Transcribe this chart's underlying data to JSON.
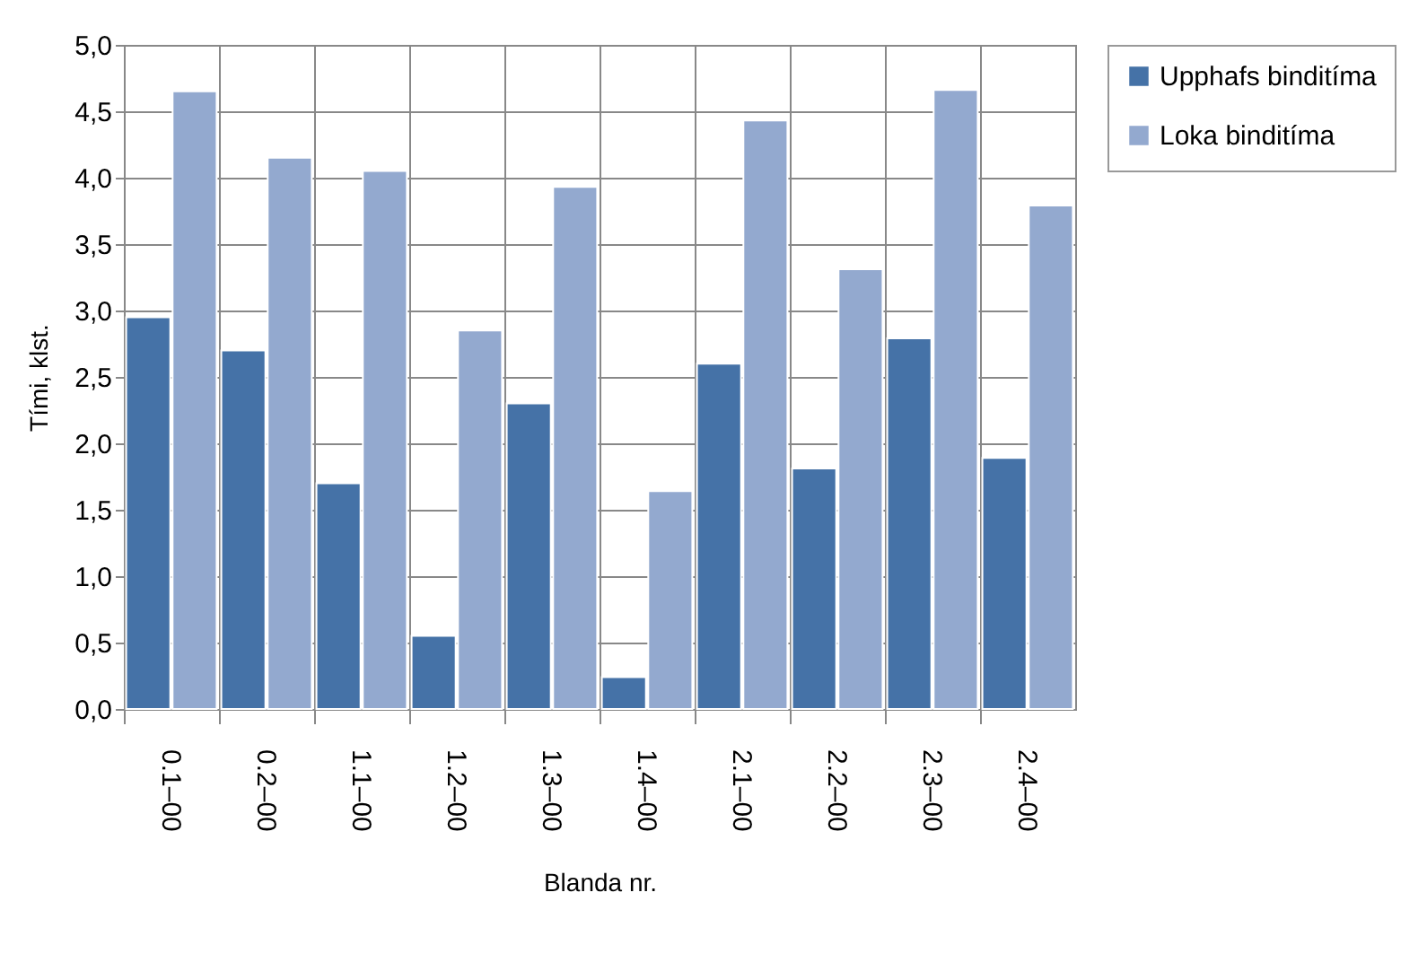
{
  "chart_data": {
    "type": "bar",
    "xlabel": "Blanda nr.",
    "ylabel": "Tími, klst.",
    "categories": [
      "0.1–00",
      "0.2–00",
      "1.1–00",
      "1.2–00",
      "1.3–00",
      "1.4–00",
      "2.1–00",
      "2.2–00",
      "2.3–00",
      "2.4–00"
    ],
    "series": [
      {
        "name": "Upphafs binditíma",
        "color": "#4572a7",
        "values": [
          2.95,
          2.7,
          1.7,
          0.55,
          2.3,
          0.24,
          2.6,
          1.81,
          2.79,
          1.89
        ]
      },
      {
        "name": "Loka binditíma",
        "color": "#93a9cf",
        "values": [
          4.65,
          4.15,
          4.05,
          2.85,
          3.93,
          1.64,
          4.43,
          3.31,
          4.66,
          3.79
        ]
      }
    ],
    "ylim": [
      0,
      5
    ],
    "yticks": [
      {
        "value": 0,
        "label": "0,0"
      },
      {
        "value": 0.5,
        "label": "0,5"
      },
      {
        "value": 1,
        "label": "1,0"
      },
      {
        "value": 1.5,
        "label": "1,5"
      },
      {
        "value": 2,
        "label": "2,0"
      },
      {
        "value": 2.5,
        "label": "2,5"
      },
      {
        "value": 3,
        "label": "3,0"
      },
      {
        "value": 3.5,
        "label": "3,5"
      },
      {
        "value": 4,
        "label": "4,0"
      },
      {
        "value": 4.5,
        "label": "4,5"
      },
      {
        "value": 5,
        "label": "5,0"
      }
    ],
    "grid": true,
    "legend": "right"
  }
}
